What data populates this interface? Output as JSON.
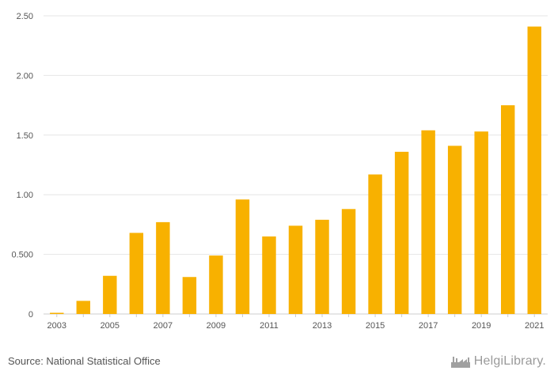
{
  "chart_data": {
    "type": "bar",
    "title": "",
    "xlabel": "",
    "ylabel": "",
    "categories": [
      "2003",
      "2004",
      "2005",
      "2006",
      "2007",
      "2008",
      "2009",
      "2010",
      "2011",
      "2012",
      "2013",
      "2014",
      "2015",
      "2016",
      "2017",
      "2018",
      "2019",
      "2020",
      "2021"
    ],
    "x_tick_labels": [
      "2003",
      "",
      "2005",
      "",
      "2007",
      "",
      "2009",
      "",
      "2011",
      "",
      "2013",
      "",
      "2015",
      "",
      "2017",
      "",
      "2019",
      "",
      "2021"
    ],
    "values": [
      0.01,
      0.11,
      0.32,
      0.68,
      0.77,
      0.31,
      0.49,
      0.96,
      0.65,
      0.74,
      0.79,
      0.88,
      1.17,
      1.36,
      1.54,
      1.41,
      1.53,
      1.75,
      2.41
    ],
    "ylim": [
      0,
      2.5
    ],
    "y_ticks": [
      {
        "value": 0,
        "label": "0"
      },
      {
        "value": 0.5,
        "label": "0.500"
      },
      {
        "value": 1.0,
        "label": "1.00"
      },
      {
        "value": 1.5,
        "label": "1.50"
      },
      {
        "value": 2.0,
        "label": "2.00"
      },
      {
        "value": 2.5,
        "label": "2.50"
      }
    ],
    "bar_color": "#F8B100",
    "grid": true
  },
  "footer": {
    "source": "Source: National Statistical Office",
    "brand": "HelgiLibrary."
  },
  "brand_icon": "factory-skyline-icon"
}
